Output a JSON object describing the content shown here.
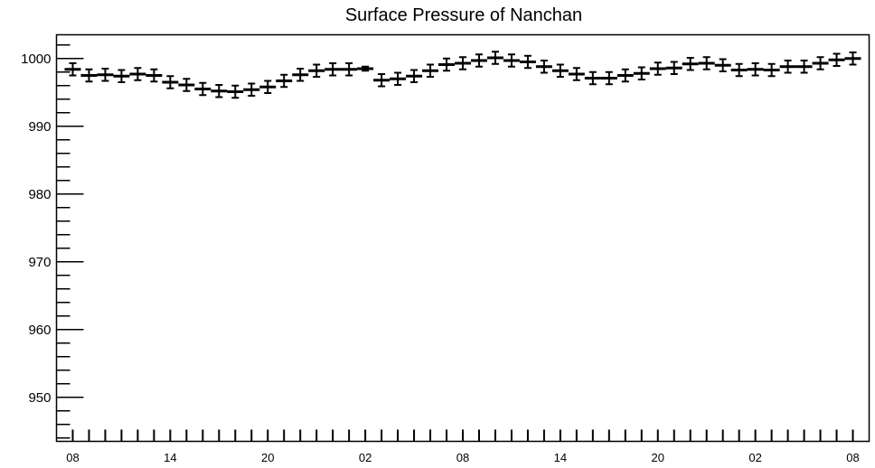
{
  "chart_data": {
    "type": "scatter",
    "title": "Surface Pressure of Nanchan",
    "xlabel": "",
    "ylabel": "",
    "ylim": [
      943.5,
      1003.5
    ],
    "yticks": [
      950,
      960,
      970,
      980,
      990,
      1000
    ],
    "xlim": [
      0,
      50
    ],
    "xtick_labels": [
      {
        "x": 1,
        "label": "08"
      },
      {
        "x": 7,
        "label": "14"
      },
      {
        "x": 13,
        "label": "20"
      },
      {
        "x": 19,
        "label": "02"
      },
      {
        "x": 25,
        "label": "08"
      },
      {
        "x": 31,
        "label": "14"
      },
      {
        "x": 37,
        "label": "20"
      },
      {
        "x": 43,
        "label": "02"
      },
      {
        "x": 49,
        "label": "08"
      }
    ],
    "grid": false,
    "series": [
      {
        "x": [
          1,
          2,
          3,
          4,
          5,
          6,
          7,
          8,
          9,
          10,
          11,
          12,
          13,
          14,
          15,
          16,
          17,
          18,
          19,
          20,
          21,
          22,
          23,
          24,
          25,
          26,
          27,
          28,
          29,
          30,
          31,
          32,
          33,
          34,
          35,
          36,
          37,
          38,
          39,
          40,
          41,
          42,
          43,
          44,
          45,
          46,
          47,
          48,
          49
        ],
        "values": [
          998.4,
          997.5,
          997.6,
          997.4,
          997.7,
          997.5,
          996.5,
          996.1,
          995.5,
          995.2,
          995.1,
          995.4,
          995.8,
          996.7,
          997.6,
          998.2,
          998.4,
          998.4,
          998.5,
          996.8,
          997.0,
          997.4,
          998.2,
          999.1,
          999.3,
          999.7,
          1000.1,
          999.7,
          999.5,
          998.8,
          998.2,
          997.7,
          997.1,
          997.1,
          997.5,
          997.8,
          998.5,
          998.6,
          999.2,
          999.3,
          999.0,
          998.3,
          998.4,
          998.3,
          998.8,
          998.8,
          999.3,
          999.8,
          1000.0
        ],
        "errors": [
          0.9,
          0.9,
          0.9,
          0.9,
          0.9,
          0.9,
          0.9,
          0.9,
          0.9,
          0.9,
          0.9,
          0.9,
          0.9,
          0.9,
          0.9,
          0.9,
          0.9,
          0.9,
          0.3,
          0.9,
          0.9,
          0.9,
          0.9,
          0.9,
          0.9,
          0.9,
          0.9,
          0.9,
          0.9,
          0.9,
          0.9,
          0.9,
          0.9,
          0.9,
          0.9,
          0.9,
          0.9,
          0.9,
          0.9,
          0.9,
          0.9,
          0.9,
          0.9,
          0.9,
          0.9,
          0.9,
          0.9,
          0.9,
          0.9
        ]
      }
    ]
  }
}
